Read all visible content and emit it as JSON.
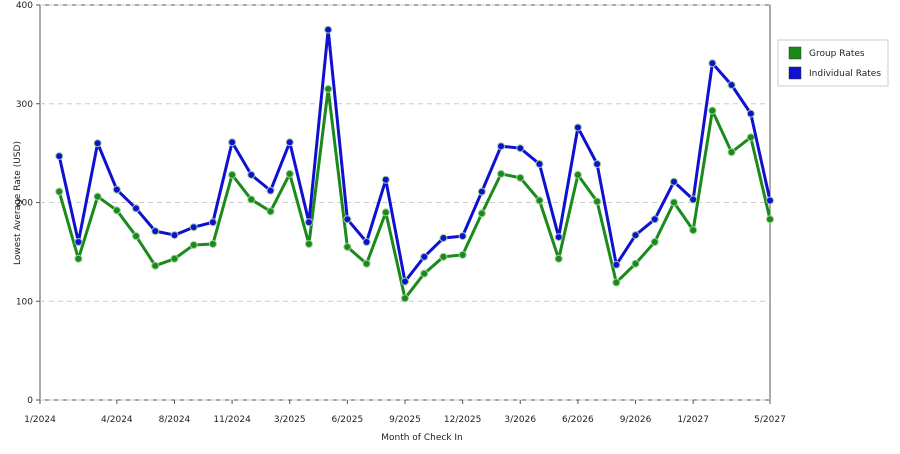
{
  "chart_data": {
    "type": "line",
    "x_label": "Month of Check In",
    "y_label": "Lowest Average Rate (USD)",
    "x": [
      0,
      1,
      2,
      3,
      4,
      5,
      6,
      7,
      8,
      9,
      10,
      11,
      12,
      13,
      14,
      15,
      16,
      17,
      18,
      19,
      20,
      21,
      22,
      23,
      24,
      25,
      26,
      27,
      28,
      29,
      30,
      31,
      32,
      33,
      34,
      35,
      36,
      37
    ],
    "xlim": [
      -1,
      37
    ],
    "xticks": [
      {
        "value": -1,
        "label": "1/2024"
      },
      {
        "value": 3,
        "label": "4/2024"
      },
      {
        "value": 6,
        "label": "8/2024"
      },
      {
        "value": 9,
        "label": "11/2024"
      },
      {
        "value": 12,
        "label": "3/2025"
      },
      {
        "value": 15,
        "label": "6/2025"
      },
      {
        "value": 18,
        "label": "9/2025"
      },
      {
        "value": 21,
        "label": "12/2025"
      },
      {
        "value": 24,
        "label": "3/2026"
      },
      {
        "value": 27,
        "label": "6/2026"
      },
      {
        "value": 30,
        "label": "9/2026"
      },
      {
        "value": 33,
        "label": "1/2027"
      },
      {
        "value": 37,
        "label": "5/2027"
      }
    ],
    "ylim": [
      0,
      400
    ],
    "yticks": [
      0,
      100,
      200,
      300,
      400
    ],
    "grid": true,
    "legend": "right",
    "series": [
      {
        "name": "Group Rates",
        "color": "#1a8a1a",
        "values": [
          211,
          143,
          206,
          192,
          166,
          136,
          143,
          157,
          158,
          228,
          203,
          191,
          229,
          158,
          315,
          155,
          138,
          190,
          103,
          128,
          145,
          147,
          189,
          229,
          225,
          202,
          143,
          228,
          201,
          119,
          138,
          160,
          200,
          172,
          293,
          251,
          266,
          183
        ]
      },
      {
        "name": "Individual Rates",
        "color": "#1010d0",
        "values": [
          247,
          160,
          260,
          213,
          194,
          171,
          167,
          175,
          180,
          261,
          228,
          212,
          261,
          180,
          375,
          183,
          160,
          223,
          120,
          145,
          164,
          166,
          211,
          257,
          255,
          239,
          165,
          276,
          239,
          137,
          167,
          183,
          221,
          203,
          341,
          319,
          290,
          202
        ]
      }
    ]
  }
}
